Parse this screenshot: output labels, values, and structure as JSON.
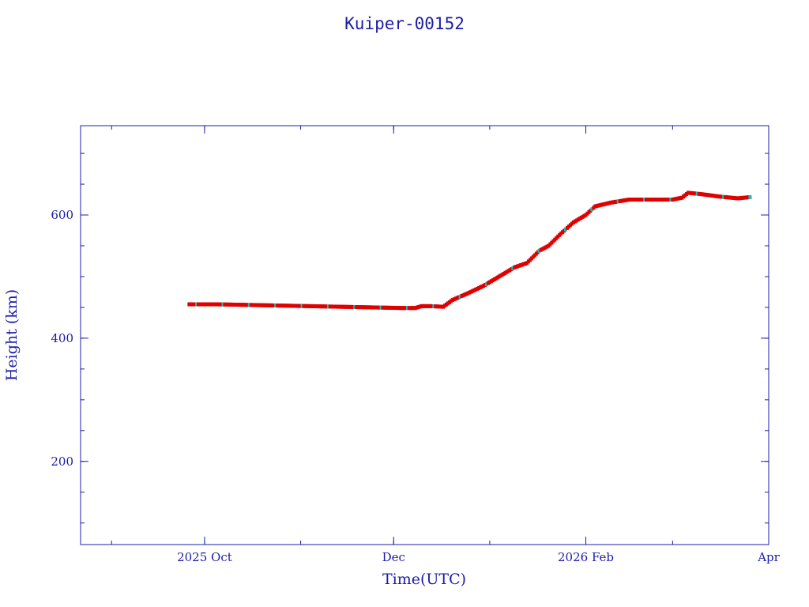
{
  "chart_data": {
    "type": "scatter",
    "title": "Kuiper-00152",
    "xlabel": "Time(UTC)",
    "ylabel": "Height (km)",
    "xlim": [
      "2025-08-22",
      "2026-04-01"
    ],
    "ylim": [
      65,
      745
    ],
    "x_ticks": [
      {
        "date": "2025-10-01",
        "label": "2025 Oct"
      },
      {
        "date": "2025-12-01",
        "label": "Dec"
      },
      {
        "date": "2026-02-01",
        "label": "2026 Feb"
      },
      {
        "date": "2026-04-01",
        "label": "Apr"
      }
    ],
    "y_ticks": [
      200,
      400,
      600
    ],
    "grid": false,
    "colors": {
      "axis": "#1c1ca8",
      "series": "#e00000",
      "marker_accent": "#20b8b8"
    },
    "series": [
      {
        "points": [
          [
            "2025-09-26",
            455
          ],
          [
            "2025-10-05",
            455
          ],
          [
            "2025-10-15",
            454
          ],
          [
            "2025-10-25",
            453
          ],
          [
            "2025-11-04",
            452
          ],
          [
            "2025-11-14",
            451
          ],
          [
            "2025-11-24",
            450
          ],
          [
            "2025-12-04",
            449
          ],
          [
            "2025-12-08",
            449
          ],
          [
            "2025-12-10",
            452
          ],
          [
            "2025-12-13",
            452
          ],
          [
            "2025-12-17",
            451
          ],
          [
            "2025-12-20",
            462
          ],
          [
            "2025-12-25",
            473
          ],
          [
            "2025-12-30",
            485
          ],
          [
            "2026-01-04",
            500
          ],
          [
            "2026-01-09",
            515
          ],
          [
            "2026-01-13",
            522
          ],
          [
            "2026-01-17",
            542
          ],
          [
            "2026-01-20",
            550
          ],
          [
            "2026-01-24",
            570
          ],
          [
            "2026-01-28",
            588
          ],
          [
            "2026-02-01",
            600
          ],
          [
            "2026-02-04",
            614
          ],
          [
            "2026-02-09",
            620
          ],
          [
            "2026-02-15",
            625
          ],
          [
            "2026-02-22",
            625
          ],
          [
            "2026-03-01",
            625
          ],
          [
            "2026-03-04",
            628
          ],
          [
            "2026-03-06",
            636
          ],
          [
            "2026-03-10",
            634
          ],
          [
            "2026-03-16",
            630
          ],
          [
            "2026-03-22",
            627
          ],
          [
            "2026-03-26",
            629
          ]
        ]
      }
    ]
  }
}
